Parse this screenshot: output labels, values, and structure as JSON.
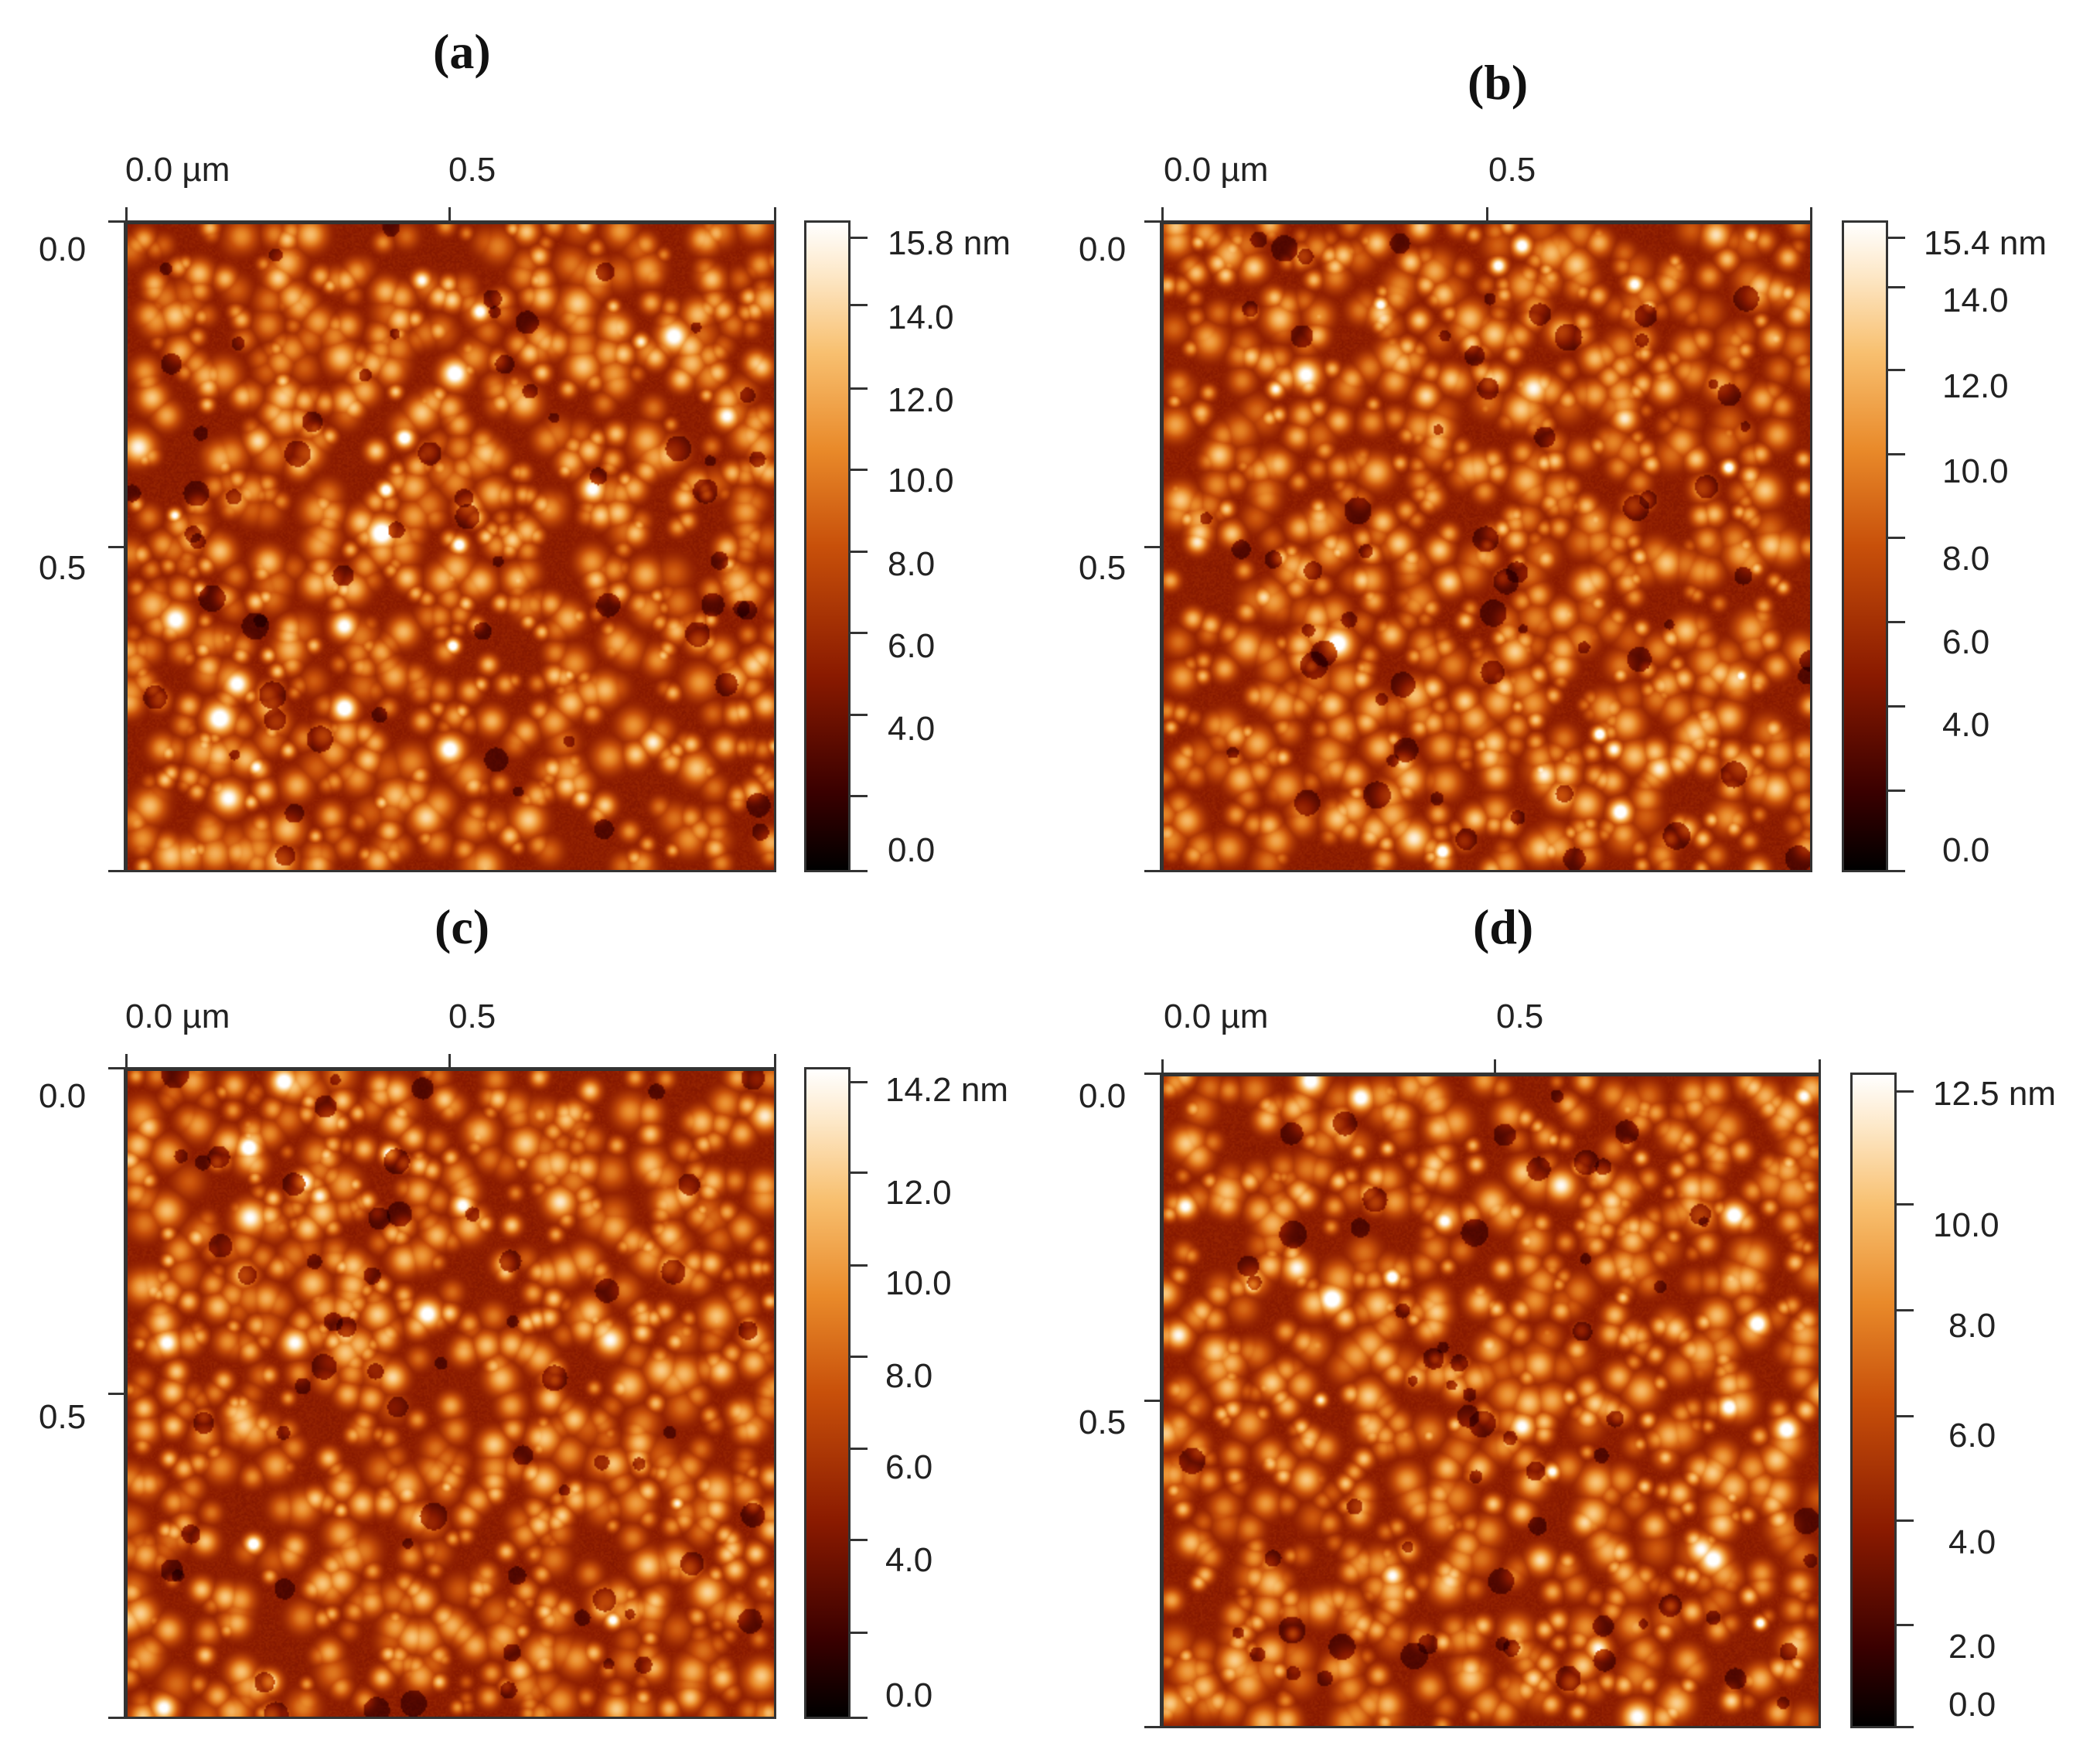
{
  "panels": [
    {
      "id": "a",
      "label": "(a)",
      "x_axis": {
        "origin_label": "0.0 µm",
        "mid_label": "0.5"
      },
      "y_axis": {
        "origin_label": "0.0",
        "mid_label": "0.5"
      },
      "colorbar": {
        "max_label": "15.8 nm",
        "labels": [
          "14.0",
          "12.0",
          "10.0",
          "8.0",
          "6.0",
          "4.0",
          "0.0"
        ]
      },
      "seed": 11
    },
    {
      "id": "b",
      "label": "(b)",
      "x_axis": {
        "origin_label": "0.0 µm",
        "mid_label": "0.5"
      },
      "y_axis": {
        "origin_label": "0.0",
        "mid_label": "0.5"
      },
      "colorbar": {
        "max_label": "15.4 nm",
        "labels": [
          "14.0",
          "12.0",
          "10.0",
          "8.0",
          "6.0",
          "4.0",
          "0.0"
        ]
      },
      "seed": 23
    },
    {
      "id": "c",
      "label": "(c)",
      "x_axis": {
        "origin_label": "0.0 µm",
        "mid_label": "0.5"
      },
      "y_axis": {
        "origin_label": "0.0",
        "mid_label": "0.5"
      },
      "colorbar": {
        "max_label": "14.2 nm",
        "labels": [
          "12.0",
          "10.0",
          "8.0",
          "6.0",
          "4.0",
          "0.0"
        ]
      },
      "seed": 37
    },
    {
      "id": "d",
      "label": "(d)",
      "x_axis": {
        "origin_label": "0.0 µm",
        "mid_label": "0.5"
      },
      "y_axis": {
        "origin_label": "0.0",
        "mid_label": "0.5"
      },
      "colorbar": {
        "max_label": "12.5 nm",
        "labels": [
          "10.0",
          "8.0",
          "6.0",
          "4.0",
          "2.0",
          "0.0"
        ]
      },
      "seed": 53
    }
  ],
  "colors": {
    "dark": "#2a0000",
    "mid": "#c8500a",
    "light": "#fde8c8"
  }
}
